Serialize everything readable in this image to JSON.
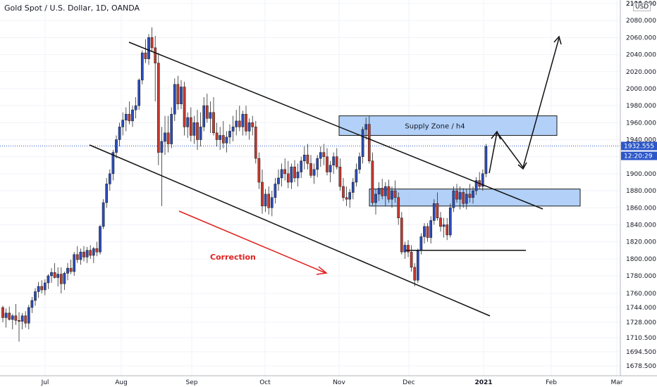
{
  "header": {
    "title": "Gold Spot / U.S. Dollar, 1D, OANDA",
    "currency": "USD"
  },
  "price_tag": {
    "price": "1932.555",
    "countdown": "12:20:29"
  },
  "annotations": {
    "supply_zone": "Supply Zone / h4",
    "correction": "Correction"
  },
  "colors": {
    "up": "#2c4cb8",
    "down": "#c53a2f",
    "zone_fill": "#a4c8f7",
    "zone_stroke": "#1c1c1c",
    "correction": "#e0201e",
    "price_tag": "#2c57c8"
  },
  "chart_data": {
    "type": "candlestick",
    "title": "Gold Spot / U.S. Dollar, 1D, OANDA",
    "ylabel": "USD",
    "x_ticks": [
      "Jul",
      "Aug",
      "Sep",
      "Oct",
      "Nov",
      "Dec",
      "2021",
      "Feb",
      "Mar"
    ],
    "y_ticks": [
      "1678.500",
      "1694.500",
      "1710.500",
      "1728.000",
      "1744.000",
      "1760.000",
      "1780.000",
      "1800.000",
      "1820.000",
      "1840.000",
      "1860.000",
      "1880.000",
      "1900.000",
      "1920.000",
      "1940.000",
      "1960.000",
      "1980.000",
      "2000.000",
      "2020.000",
      "2040.000",
      "2060.000",
      "2080.000",
      "2100.000"
    ],
    "y_top_clipped": "2114.000",
    "last_price": 1932.555,
    "current_price_line": 1932.555,
    "horizontal_level": 1810,
    "supply_zone": [
      1945,
      1968
    ],
    "demand_zone": [
      1862,
      1882
    ],
    "series": [
      {
        "name": "XAUUSD",
        "ohlc": [
          [
            1744,
            1746,
            1728,
            1733
          ],
          [
            1733,
            1743,
            1722,
            1738
          ],
          [
            1738,
            1745,
            1730,
            1731
          ],
          [
            1731,
            1737,
            1720,
            1735
          ],
          [
            1735,
            1748,
            1725,
            1730
          ],
          [
            1730,
            1739,
            1706,
            1729
          ],
          [
            1729,
            1738,
            1720,
            1735
          ],
          [
            1735,
            1740,
            1722,
            1727
          ],
          [
            1727,
            1747,
            1720,
            1744
          ],
          [
            1744,
            1756,
            1738,
            1752
          ],
          [
            1752,
            1766,
            1746,
            1762
          ],
          [
            1762,
            1773,
            1755,
            1768
          ],
          [
            1768,
            1775,
            1760,
            1764
          ],
          [
            1764,
            1776,
            1758,
            1772
          ],
          [
            1772,
            1782,
            1765,
            1780
          ],
          [
            1780,
            1789,
            1772,
            1784
          ],
          [
            1784,
            1795,
            1777,
            1778
          ],
          [
            1778,
            1790,
            1768,
            1782
          ],
          [
            1782,
            1790,
            1760,
            1771
          ],
          [
            1771,
            1785,
            1764,
            1783
          ],
          [
            1783,
            1795,
            1775,
            1789
          ],
          [
            1789,
            1799,
            1782,
            1785
          ],
          [
            1785,
            1808,
            1780,
            1805
          ],
          [
            1805,
            1815,
            1795,
            1799
          ],
          [
            1799,
            1812,
            1793,
            1808
          ],
          [
            1808,
            1815,
            1797,
            1802
          ],
          [
            1802,
            1814,
            1795,
            1810
          ],
          [
            1810,
            1816,
            1800,
            1804
          ],
          [
            1804,
            1814,
            1795,
            1812
          ],
          [
            1812,
            1820,
            1803,
            1808
          ],
          [
            1808,
            1840,
            1805,
            1838
          ],
          [
            1838,
            1870,
            1835,
            1866
          ],
          [
            1866,
            1895,
            1860,
            1888
          ],
          [
            1888,
            1905,
            1880,
            1900
          ],
          [
            1900,
            1928,
            1892,
            1925
          ],
          [
            1925,
            1945,
            1918,
            1940
          ],
          [
            1940,
            1960,
            1932,
            1955
          ],
          [
            1955,
            1972,
            1945,
            1963
          ],
          [
            1963,
            1978,
            1950,
            1970
          ],
          [
            1970,
            1985,
            1958,
            1962
          ],
          [
            1962,
            1980,
            1955,
            1975
          ],
          [
            1975,
            1990,
            1965,
            1980
          ],
          [
            1980,
            2012,
            1975,
            2010
          ],
          [
            2010,
            2045,
            2005,
            2042
          ],
          [
            2042,
            2058,
            2030,
            2035
          ],
          [
            2035,
            2064,
            2028,
            2060
          ],
          [
            2060,
            2072,
            2043,
            2048
          ],
          [
            2048,
            2062,
            1985,
            2030
          ],
          [
            2030,
            2042,
            1910,
            1925
          ],
          [
            1925,
            1955,
            1862,
            1938
          ],
          [
            1938,
            1968,
            1922,
            1948
          ],
          [
            1948,
            1968,
            1925,
            1935
          ],
          [
            1935,
            1978,
            1930,
            1970
          ],
          [
            1970,
            2012,
            1962,
            2005
          ],
          [
            2005,
            2015,
            1975,
            1982
          ],
          [
            1982,
            2010,
            1976,
            2002
          ],
          [
            2002,
            2008,
            1945,
            1955
          ],
          [
            1955,
            1972,
            1942,
            1966
          ],
          [
            1966,
            1978,
            1938,
            1945
          ],
          [
            1945,
            1968,
            1935,
            1960
          ],
          [
            1960,
            1975,
            1928,
            1940
          ],
          [
            1940,
            1972,
            1932,
            1955
          ],
          [
            1955,
            1990,
            1950,
            1980
          ],
          [
            1980,
            1994,
            1960,
            1965
          ],
          [
            1965,
            1985,
            1948,
            1972
          ],
          [
            1972,
            1990,
            1945,
            1948
          ],
          [
            1948,
            1960,
            1932,
            1940
          ],
          [
            1940,
            1955,
            1928,
            1945
          ],
          [
            1945,
            1962,
            1930,
            1936
          ],
          [
            1936,
            1950,
            1925,
            1943
          ],
          [
            1943,
            1958,
            1935,
            1950
          ],
          [
            1950,
            1968,
            1938,
            1955
          ],
          [
            1955,
            1975,
            1945,
            1962
          ],
          [
            1962,
            1980,
            1950,
            1955
          ],
          [
            1955,
            1974,
            1945,
            1970
          ],
          [
            1970,
            1980,
            1945,
            1950
          ],
          [
            1950,
            1965,
            1940,
            1960
          ],
          [
            1960,
            1968,
            1945,
            1955
          ],
          [
            1955,
            1962,
            1912,
            1918
          ],
          [
            1918,
            1925,
            1882,
            1890
          ],
          [
            1890,
            1905,
            1853,
            1862
          ],
          [
            1862,
            1882,
            1855,
            1876
          ],
          [
            1876,
            1885,
            1852,
            1860
          ],
          [
            1860,
            1880,
            1850,
            1872
          ],
          [
            1872,
            1895,
            1865,
            1888
          ],
          [
            1888,
            1905,
            1880,
            1895
          ],
          [
            1895,
            1912,
            1885,
            1905
          ],
          [
            1905,
            1918,
            1892,
            1900
          ],
          [
            1900,
            1915,
            1883,
            1890
          ],
          [
            1890,
            1912,
            1882,
            1908
          ],
          [
            1908,
            1916,
            1890,
            1895
          ],
          [
            1895,
            1912,
            1885,
            1902
          ],
          [
            1902,
            1920,
            1895,
            1915
          ],
          [
            1915,
            1932,
            1905,
            1922
          ],
          [
            1922,
            1935,
            1905,
            1912
          ],
          [
            1912,
            1922,
            1895,
            1898
          ],
          [
            1898,
            1912,
            1888,
            1905
          ],
          [
            1905,
            1922,
            1896,
            1918
          ],
          [
            1918,
            1932,
            1908,
            1925
          ],
          [
            1925,
            1935,
            1910,
            1920
          ],
          [
            1920,
            1930,
            1898,
            1902
          ],
          [
            1902,
            1915,
            1890,
            1910
          ],
          [
            1910,
            1925,
            1900,
            1920
          ],
          [
            1920,
            1930,
            1905,
            1908
          ],
          [
            1908,
            1918,
            1880,
            1885
          ],
          [
            1885,
            1895,
            1868,
            1872
          ],
          [
            1872,
            1885,
            1862,
            1870
          ],
          [
            1870,
            1882,
            1860,
            1878
          ],
          [
            1878,
            1895,
            1870,
            1890
          ],
          [
            1890,
            1912,
            1885,
            1905
          ],
          [
            1905,
            1925,
            1900,
            1920
          ],
          [
            1920,
            1955,
            1912,
            1952
          ],
          [
            1952,
            1966,
            1940,
            1958
          ],
          [
            1958,
            1968,
            1912,
            1915
          ],
          [
            1915,
            1925,
            1862,
            1866
          ],
          [
            1866,
            1882,
            1852,
            1876
          ],
          [
            1876,
            1890,
            1868,
            1883
          ],
          [
            1883,
            1894,
            1870,
            1874
          ],
          [
            1874,
            1890,
            1862,
            1885
          ],
          [
            1885,
            1893,
            1866,
            1870
          ],
          [
            1870,
            1885,
            1860,
            1880
          ],
          [
            1880,
            1892,
            1866,
            1872
          ],
          [
            1872,
            1878,
            1840,
            1848
          ],
          [
            1848,
            1855,
            1805,
            1808
          ],
          [
            1808,
            1820,
            1800,
            1816
          ],
          [
            1816,
            1822,
            1802,
            1808
          ],
          [
            1808,
            1816,
            1785,
            1790
          ],
          [
            1790,
            1795,
            1768,
            1775
          ],
          [
            1775,
            1812,
            1772,
            1810
          ],
          [
            1810,
            1830,
            1805,
            1826
          ],
          [
            1826,
            1842,
            1818,
            1838
          ],
          [
            1838,
            1842,
            1820,
            1825
          ],
          [
            1825,
            1850,
            1818,
            1845
          ],
          [
            1845,
            1870,
            1840,
            1865
          ],
          [
            1865,
            1878,
            1845,
            1848
          ],
          [
            1848,
            1855,
            1832,
            1838
          ],
          [
            1838,
            1848,
            1825,
            1840
          ],
          [
            1840,
            1848,
            1822,
            1828
          ],
          [
            1828,
            1865,
            1825,
            1860
          ],
          [
            1860,
            1885,
            1855,
            1880
          ],
          [
            1880,
            1888,
            1866,
            1870
          ],
          [
            1870,
            1885,
            1858,
            1878
          ],
          [
            1878,
            1883,
            1860,
            1865
          ],
          [
            1865,
            1882,
            1858,
            1876
          ],
          [
            1876,
            1888,
            1866,
            1872
          ],
          [
            1872,
            1885,
            1865,
            1880
          ],
          [
            1880,
            1896,
            1875,
            1892
          ],
          [
            1892,
            1902,
            1882,
            1885
          ],
          [
            1885,
            1905,
            1880,
            1900
          ],
          [
            1900,
            1935,
            1896,
            1932
          ]
        ]
      }
    ]
  }
}
